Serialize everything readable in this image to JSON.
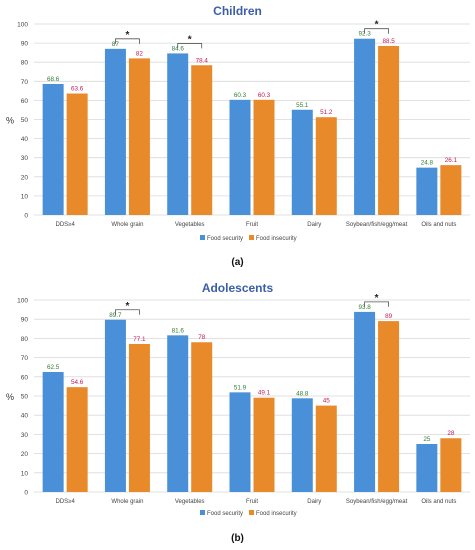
{
  "colors": {
    "food_security": "#4a90d9",
    "food_insecurity": "#e8892a",
    "grid": "#d9d9d9",
    "value_security": "#2e7d32",
    "value_insecurity": "#c2185b",
    "title": "#3b5ea8"
  },
  "chart_data": [
    {
      "type": "bar",
      "title": "Children",
      "panel_label": "(a)",
      "ylabel": "%",
      "ylim": [
        0,
        100
      ],
      "yticks": [
        0,
        10,
        20,
        30,
        40,
        50,
        60,
        70,
        80,
        90,
        100
      ],
      "grid": true,
      "legend_position": "bottom",
      "categories": [
        "DDS≥4",
        "Whole grain",
        "Vegetables",
        "Fruit",
        "Dairy",
        "Soybean/fish/egg/meat",
        "Oils and nuts"
      ],
      "series": [
        {
          "name": "Food security",
          "values": [
            68.6,
            87,
            84.6,
            60.3,
            55.1,
            92.3,
            24.8
          ]
        },
        {
          "name": "Food insecurity",
          "values": [
            63.6,
            82,
            78.4,
            60.3,
            51.2,
            88.5,
            26.1
          ]
        }
      ],
      "value_labels": {
        "Food security": [
          "68.6",
          "87",
          "84.6",
          "60.3",
          "55.1",
          "92.3",
          "24.8"
        ],
        "Food insecurity": [
          "63.6",
          "82",
          "78.4",
          "60.3",
          "51.2",
          "88.5",
          "26.1"
        ]
      },
      "significance_marker": "*",
      "significant": [
        false,
        true,
        true,
        false,
        false,
        true,
        false
      ]
    },
    {
      "type": "bar",
      "title": "Adolescents",
      "panel_label": "(b)",
      "ylabel": "%",
      "ylim": [
        0,
        100
      ],
      "yticks": [
        0,
        10,
        20,
        30,
        40,
        50,
        60,
        70,
        80,
        90,
        100
      ],
      "grid": true,
      "legend_position": "bottom",
      "categories": [
        "DDS≥4",
        "Whole grain",
        "Vegetables",
        "Fruit",
        "Dairy",
        "Soybean/fish/egg/meat",
        "Oils and nuts"
      ],
      "series": [
        {
          "name": "Food security",
          "values": [
            62.5,
            89.7,
            81.6,
            51.9,
            48.8,
            93.8,
            25
          ]
        },
        {
          "name": "Food insecurity",
          "values": [
            54.6,
            77.1,
            78,
            49.1,
            45,
            89,
            28
          ]
        }
      ],
      "value_labels": {
        "Food security": [
          "62.5",
          "89.7",
          "81.6",
          "51.9",
          "48.8",
          "93.8",
          "25"
        ],
        "Food insecurity": [
          "54.6",
          "77.1",
          "78",
          "49.1",
          "45",
          "89",
          "28"
        ]
      },
      "significance_marker": "*",
      "significant": [
        false,
        true,
        false,
        false,
        false,
        true,
        false
      ]
    }
  ]
}
